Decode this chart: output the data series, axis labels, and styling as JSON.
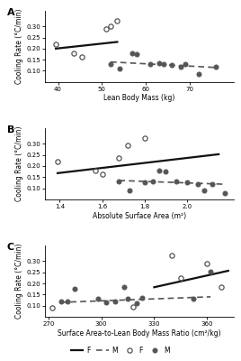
{
  "panel_A": {
    "title": "A",
    "xlabel": "Lean Body Mass (kg)",
    "ylabel": "Cooling Rate (°C/min)",
    "xlim": [
      37,
      80
    ],
    "ylim": [
      0.05,
      0.37
    ],
    "yticks": [
      0.1,
      0.15,
      0.2,
      0.25,
      0.3
    ],
    "xticks": [
      40,
      50,
      60,
      70
    ],
    "F_x": [
      39.5,
      43.5,
      45.5,
      51,
      52,
      53.5
    ],
    "F_y": [
      0.22,
      0.18,
      0.162,
      0.29,
      0.3,
      0.325
    ],
    "M_x": [
      52,
      54,
      57,
      58,
      61,
      63,
      64,
      66,
      68,
      69,
      72,
      76
    ],
    "M_y": [
      0.13,
      0.11,
      0.18,
      0.175,
      0.13,
      0.135,
      0.13,
      0.125,
      0.12,
      0.13,
      0.085,
      0.12
    ],
    "F_line_x": [
      39.5,
      53.5
    ],
    "F_line_y": [
      0.2,
      0.23
    ],
    "M_line_x": [
      52,
      76
    ],
    "M_line_y": [
      0.14,
      0.115
    ]
  },
  "panel_B": {
    "title": "B",
    "xlabel": "Absolute Surface Area (m²)",
    "ylabel": "Cooling Rate (°C/min)",
    "xlim": [
      1.33,
      2.22
    ],
    "ylim": [
      0.05,
      0.37
    ],
    "yticks": [
      0.1,
      0.15,
      0.2,
      0.25,
      0.3
    ],
    "xticks": [
      1.4,
      1.6,
      1.8,
      2.0
    ],
    "F_x": [
      1.39,
      1.57,
      1.6,
      1.68,
      1.72,
      1.8
    ],
    "F_y": [
      0.22,
      0.18,
      0.162,
      0.235,
      0.295,
      0.325
    ],
    "M_x": [
      1.68,
      1.73,
      1.8,
      1.84,
      1.87,
      1.9,
      1.95,
      2.0,
      2.05,
      2.08,
      2.12,
      2.18
    ],
    "M_y": [
      0.13,
      0.09,
      0.125,
      0.13,
      0.18,
      0.175,
      0.13,
      0.125,
      0.12,
      0.09,
      0.12,
      0.08
    ],
    "F_line_x": [
      1.39,
      2.15
    ],
    "F_line_y": [
      0.168,
      0.253
    ],
    "M_line_x": [
      1.68,
      2.18
    ],
    "M_line_y": [
      0.135,
      0.118
    ]
  },
  "panel_C": {
    "title": "C",
    "xlabel": "Surface Area-to-Lean Body Mass Ratio (cm²/kg)",
    "ylabel": "Cooling Rate (°C/min)",
    "xlim": [
      268,
      375
    ],
    "ylim": [
      0.05,
      0.37
    ],
    "yticks": [
      0.1,
      0.15,
      0.2,
      0.25,
      0.3
    ],
    "xticks": [
      270,
      300,
      330,
      360
    ],
    "F_x": [
      272,
      318,
      340,
      345,
      360,
      368
    ],
    "F_y": [
      0.09,
      0.095,
      0.325,
      0.225,
      0.29,
      0.185
    ],
    "M_x": [
      277,
      281,
      285,
      298,
      303,
      308,
      313,
      315,
      320,
      323,
      352,
      362
    ],
    "M_y": [
      0.12,
      0.12,
      0.175,
      0.13,
      0.115,
      0.12,
      0.185,
      0.13,
      0.11,
      0.135,
      0.13,
      0.255
    ],
    "F_line_x": [
      330,
      372
    ],
    "F_line_y": [
      0.183,
      0.257
    ],
    "M_line_x": [
      277,
      362
    ],
    "M_line_y": [
      0.115,
      0.14
    ]
  }
}
